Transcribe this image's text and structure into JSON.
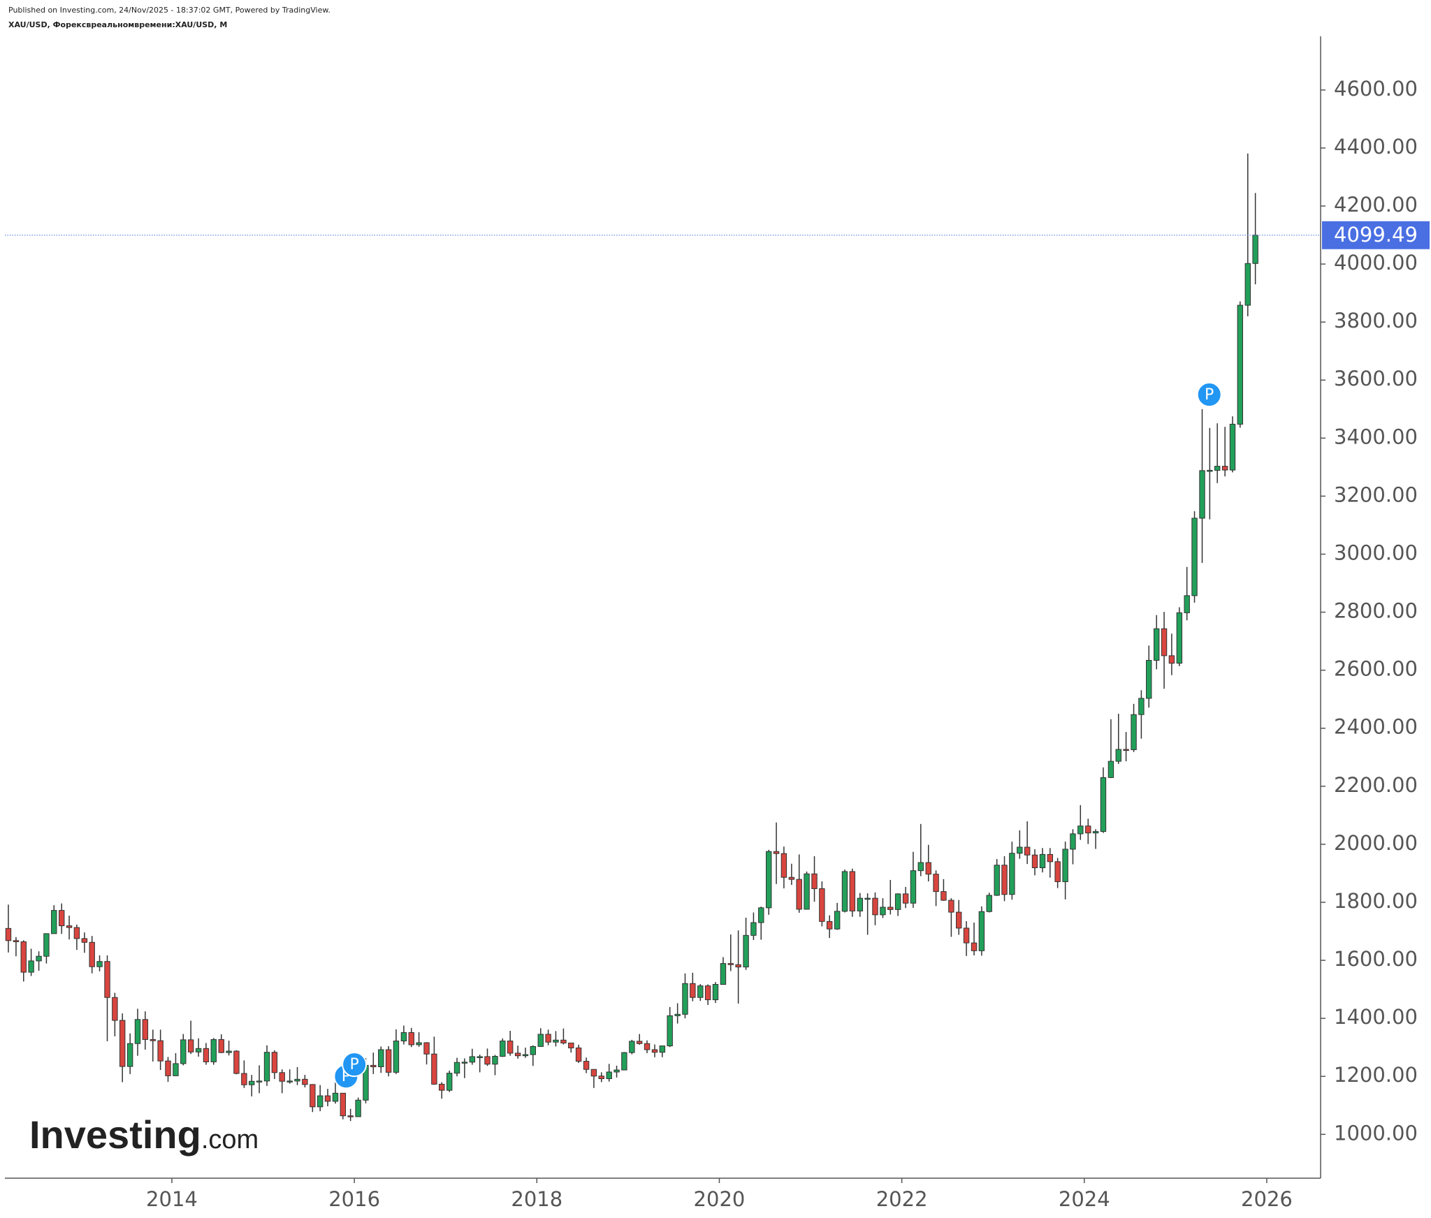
{
  "header": {
    "published": "Published on Investing.com, 24/Nov/2025 - 18:37:02 GMT, Powered by TradingView.",
    "symbol": "XAU/USD, Форексвреальномвремени:XAU/USD, M"
  },
  "logo": {
    "name": "Investing",
    "suffix": ".com"
  },
  "chart_data": {
    "type": "candlestick",
    "x": [
      2012.208,
      2012.292,
      2012.375,
      2012.458,
      2012.542,
      2012.625,
      2012.708,
      2012.792,
      2012.875,
      2012.958,
      2013.042,
      2013.125,
      2013.208,
      2013.292,
      2013.375,
      2013.458,
      2013.542,
      2013.625,
      2013.708,
      2013.792,
      2013.875,
      2013.958,
      2014.042,
      2014.125,
      2014.208,
      2014.292,
      2014.375,
      2014.458,
      2014.542,
      2014.625,
      2014.708,
      2014.792,
      2014.875,
      2014.958,
      2015.042,
      2015.125,
      2015.208,
      2015.292,
      2015.375,
      2015.458,
      2015.542,
      2015.625,
      2015.708,
      2015.792,
      2015.875,
      2015.958,
      2016.042,
      2016.125,
      2016.208,
      2016.292,
      2016.375,
      2016.458,
      2016.542,
      2016.625,
      2016.708,
      2016.792,
      2016.875,
      2016.958,
      2017.042,
      2017.125,
      2017.208,
      2017.292,
      2017.375,
      2017.458,
      2017.542,
      2017.625,
      2017.708,
      2017.792,
      2017.875,
      2017.958,
      2018.042,
      2018.125,
      2018.208,
      2018.292,
      2018.375,
      2018.458,
      2018.542,
      2018.625,
      2018.708,
      2018.792,
      2018.875,
      2018.958,
      2019.042,
      2019.125,
      2019.208,
      2019.292,
      2019.375,
      2019.458,
      2019.542,
      2019.625,
      2019.708,
      2019.792,
      2019.875,
      2019.958,
      2020.042,
      2020.125,
      2020.208,
      2020.292,
      2020.375,
      2020.458,
      2020.542,
      2020.625,
      2020.708,
      2020.792,
      2020.875,
      2020.958,
      2021.042,
      2021.125,
      2021.208,
      2021.292,
      2021.375,
      2021.458,
      2021.542,
      2021.625,
      2021.708,
      2021.792,
      2021.875,
      2021.958,
      2022.042,
      2022.125,
      2022.208,
      2022.292,
      2022.375,
      2022.458,
      2022.542,
      2022.625,
      2022.708,
      2022.792,
      2022.875,
      2022.958,
      2023.042,
      2023.125,
      2023.208,
      2023.292,
      2023.375,
      2023.458,
      2023.542,
      2023.625,
      2023.708,
      2023.792,
      2023.875,
      2023.958,
      2024.042,
      2024.125,
      2024.208,
      2024.292,
      2024.375,
      2024.458,
      2024.542,
      2024.625,
      2024.708,
      2024.792,
      2024.875,
      2024.958,
      2025.042,
      2025.125,
      2025.208,
      2025.292,
      2025.375,
      2025.458,
      2025.542,
      2025.625,
      2025.708,
      2025.792,
      2025.875
    ],
    "open": [
      1710,
      1668,
      1664,
      1559,
      1598,
      1614,
      1692,
      1772,
      1719,
      1713,
      1675,
      1662,
      1578,
      1596,
      1472,
      1393,
      1234,
      1313,
      1396,
      1327,
      1323,
      1253,
      1202,
      1244,
      1326,
      1284,
      1296,
      1250,
      1327,
      1282,
      1287,
      1210,
      1171,
      1183,
      1184,
      1283,
      1213,
      1183,
      1184,
      1190,
      1172,
      1095,
      1133,
      1114,
      1142,
      1064,
      1061,
      1118,
      1238,
      1233,
      1292,
      1214,
      1322,
      1351,
      1309,
      1316,
      1277,
      1173,
      1152,
      1211,
      1248,
      1249,
      1268,
      1268,
      1242,
      1269,
      1322,
      1280,
      1271,
      1275,
      1303,
      1345,
      1318,
      1325,
      1315,
      1298,
      1252,
      1224,
      1201,
      1192,
      1215,
      1222,
      1282,
      1321,
      1313,
      1292,
      1283,
      1305,
      1409,
      1414,
      1520,
      1472,
      1512,
      1464,
      1517,
      1589,
      1585,
      1577,
      1686,
      1730,
      1781,
      1975,
      1968,
      1886,
      1879,
      1776,
      1898,
      1847,
      1734,
      1708,
      1769,
      1906,
      1770,
      1814,
      1814,
      1757,
      1783,
      1775,
      1829,
      1797,
      1909,
      1937,
      1897,
      1837,
      1807,
      1766,
      1711,
      1660,
      1633,
      1768,
      1824,
      1928,
      1827,
      1969,
      1990,
      1963,
      1919,
      1965,
      1940,
      1871,
      1983,
      2036,
      2063,
      2039,
      2044,
      2230,
      2286,
      2327,
      2326,
      2447,
      2503,
      2634,
      2743,
      2650,
      2624,
      2798,
      2857,
      3124,
      3288,
      3289,
      3303,
      3290,
      3448,
      3858,
      4002
    ],
    "high": [
      1792,
      1680,
      1669,
      1640,
      1631,
      1692,
      1790,
      1796,
      1754,
      1723,
      1696,
      1684,
      1617,
      1617,
      1488,
      1417,
      1348,
      1433,
      1424,
      1361,
      1361,
      1267,
      1280,
      1346,
      1392,
      1331,
      1315,
      1332,
      1345,
      1323,
      1290,
      1255,
      1205,
      1238,
      1307,
      1290,
      1224,
      1224,
      1232,
      1205,
      1173,
      1170,
      1157,
      1191,
      1142,
      1088,
      1127,
      1263,
      1282,
      1303,
      1304,
      1362,
      1375,
      1367,
      1352,
      1318,
      1337,
      1180,
      1220,
      1264,
      1262,
      1295,
      1275,
      1296,
      1274,
      1331,
      1357,
      1306,
      1299,
      1307,
      1366,
      1361,
      1356,
      1365,
      1316,
      1309,
      1265,
      1224,
      1214,
      1243,
      1237,
      1284,
      1326,
      1346,
      1324,
      1310,
      1306,
      1439,
      1452,
      1555,
      1557,
      1518,
      1517,
      1525,
      1611,
      1689,
      1703,
      1747,
      1765,
      1785,
      1981,
      2075,
      1992,
      1933,
      1965,
      1906,
      1959,
      1872,
      1755,
      1798,
      1913,
      1916,
      1832,
      1831,
      1834,
      1814,
      1877,
      1831,
      1853,
      1974,
      2070,
      1998,
      1910,
      1880,
      1814,
      1808,
      1735,
      1730,
      1786,
      1833,
      1949,
      1959,
      2009,
      2048,
      2079,
      1983,
      1987,
      1987,
      1953,
      2009,
      2052,
      2135,
      2088,
      2052,
      2265,
      2431,
      2450,
      2387,
      2484,
      2531,
      2685,
      2790,
      2801,
      2726,
      2817,
      2956,
      3148,
      3500,
      3435,
      3451,
      3439,
      3475,
      3871,
      4381,
      4245
    ],
    "low": [
      1627,
      1614,
      1527,
      1546,
      1564,
      1589,
      1692,
      1691,
      1672,
      1636,
      1626,
      1555,
      1562,
      1321,
      1338,
      1180,
      1208,
      1271,
      1292,
      1251,
      1222,
      1181,
      1202,
      1238,
      1277,
      1268,
      1240,
      1240,
      1280,
      1272,
      1207,
      1160,
      1131,
      1142,
      1167,
      1191,
      1142,
      1175,
      1170,
      1162,
      1077,
      1080,
      1097,
      1106,
      1052,
      1046,
      1061,
      1107,
      1208,
      1212,
      1200,
      1208,
      1310,
      1301,
      1302,
      1241,
      1171,
      1123,
      1146,
      1200,
      1194,
      1240,
      1214,
      1236,
      1204,
      1267,
      1271,
      1261,
      1264,
      1236,
      1302,
      1307,
      1303,
      1310,
      1282,
      1246,
      1211,
      1160,
      1180,
      1182,
      1196,
      1221,
      1276,
      1309,
      1280,
      1266,
      1266,
      1301,
      1382,
      1400,
      1459,
      1460,
      1446,
      1453,
      1517,
      1563,
      1451,
      1567,
      1670,
      1671,
      1757,
      1863,
      1848,
      1860,
      1764,
      1775,
      1802,
      1717,
      1677,
      1705,
      1765,
      1750,
      1750,
      1688,
      1721,
      1746,
      1758,
      1753,
      1780,
      1781,
      1890,
      1872,
      1787,
      1805,
      1681,
      1688,
      1615,
      1617,
      1616,
      1765,
      1822,
      1804,
      1809,
      1950,
      1932,
      1893,
      1903,
      1885,
      1849,
      1810,
      1931,
      2015,
      2001,
      1984,
      2039,
      2228,
      2277,
      2286,
      2318,
      2364,
      2471,
      2603,
      2536,
      2583,
      2614,
      2772,
      2833,
      2970,
      3120,
      3245,
      3268,
      3282,
      3436,
      3820,
      3930
    ],
    "close": [
      1668,
      1664,
      1559,
      1598,
      1614,
      1692,
      1772,
      1719,
      1713,
      1675,
      1662,
      1578,
      1596,
      1472,
      1393,
      1234,
      1313,
      1396,
      1327,
      1323,
      1253,
      1202,
      1244,
      1326,
      1284,
      1296,
      1250,
      1327,
      1282,
      1287,
      1210,
      1171,
      1183,
      1184,
      1283,
      1213,
      1183,
      1184,
      1190,
      1172,
      1095,
      1133,
      1114,
      1142,
      1064,
      1061,
      1118,
      1238,
      1233,
      1292,
      1214,
      1322,
      1351,
      1309,
      1316,
      1277,
      1173,
      1152,
      1211,
      1248,
      1249,
      1268,
      1268,
      1242,
      1269,
      1322,
      1280,
      1271,
      1275,
      1303,
      1345,
      1318,
      1325,
      1315,
      1298,
      1252,
      1224,
      1201,
      1192,
      1215,
      1222,
      1282,
      1321,
      1313,
      1292,
      1283,
      1305,
      1409,
      1414,
      1520,
      1472,
      1512,
      1464,
      1517,
      1589,
      1585,
      1577,
      1686,
      1730,
      1781,
      1975,
      1968,
      1886,
      1879,
      1776,
      1898,
      1847,
      1734,
      1708,
      1769,
      1906,
      1770,
      1814,
      1814,
      1757,
      1783,
      1775,
      1829,
      1797,
      1909,
      1937,
      1897,
      1837,
      1807,
      1766,
      1711,
      1660,
      1633,
      1768,
      1824,
      1928,
      1827,
      1969,
      1990,
      1963,
      1919,
      1965,
      1940,
      1871,
      1983,
      2036,
      2063,
      2039,
      2044,
      2230,
      2286,
      2327,
      2326,
      2447,
      2503,
      2634,
      2743,
      2650,
      2624,
      2798,
      2857,
      3124,
      3288,
      3289,
      3303,
      3290,
      3448,
      3858,
      4002,
      4099.49
    ],
    "up_color": "#22a05a",
    "down_color": "#d9453f",
    "outline_color": "#333333",
    "xlim": [
      2012.17,
      2026.59
    ],
    "xticks": [
      2014,
      2016,
      2018,
      2020,
      2022,
      2024,
      2026
    ],
    "ylim": [
      849,
      4785
    ],
    "yticks": [
      {
        "value": 1000,
        "label": "1000.00"
      },
      {
        "value": 1200,
        "label": "1200.00"
      },
      {
        "value": 1400,
        "label": "1400.00"
      },
      {
        "value": 1600,
        "label": "1600.00"
      },
      {
        "value": 1800,
        "label": "1800.00"
      },
      {
        "value": 2000,
        "label": "2000.00"
      },
      {
        "value": 2200,
        "label": "2200.00"
      },
      {
        "value": 2400,
        "label": "2400.00"
      },
      {
        "value": 2600,
        "label": "2600.00"
      },
      {
        "value": 2800,
        "label": "2800.00"
      },
      {
        "value": 3000,
        "label": "3000.00"
      },
      {
        "value": 3200,
        "label": "3200.00"
      },
      {
        "value": 3400,
        "label": "3400.00"
      },
      {
        "value": 3600,
        "label": "3600.00"
      },
      {
        "value": 3800,
        "label": "3800.00"
      },
      {
        "value": 4000,
        "label": "4000.00"
      },
      {
        "value": 4200,
        "label": "4200.00"
      },
      {
        "value": 4400,
        "label": "4400.00"
      },
      {
        "value": 4600,
        "label": "4600.00"
      }
    ],
    "last_price": 4099.49,
    "last_price_color": "#4a6fe3",
    "markers": [
      {
        "x": 2015.91,
        "y": 1200,
        "label": "P"
      },
      {
        "x": 2016.0,
        "y": 1241,
        "label": "P"
      },
      {
        "x": 2025.37,
        "y": 3550,
        "label": "P"
      }
    ],
    "marker_color": "#2196f3"
  }
}
